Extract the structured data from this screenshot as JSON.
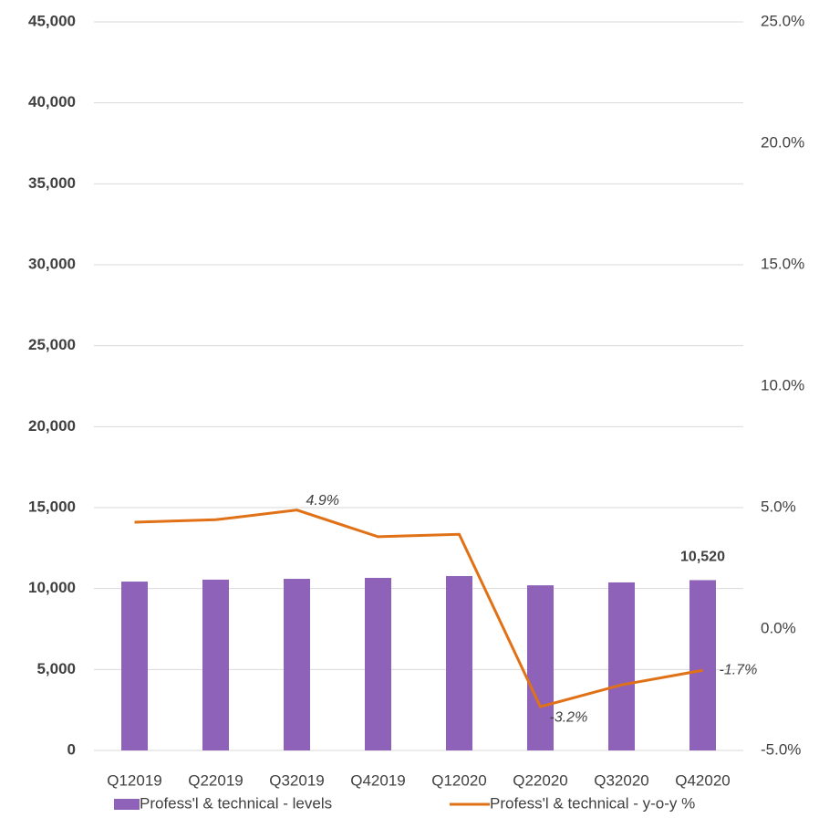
{
  "chart_data": {
    "type": "bar_line",
    "categories": [
      "Q12019",
      "Q22019",
      "Q32019",
      "Q42019",
      "Q12020",
      "Q22020",
      "Q32020",
      "Q42020"
    ],
    "series": [
      {
        "name": "Profess'l & technical - levels",
        "type": "bar",
        "color": "#8e62b8",
        "values": [
          10430,
          10550,
          10600,
          10660,
          10770,
          10200,
          10380,
          10520
        ],
        "value_labels": [
          null,
          null,
          null,
          null,
          null,
          null,
          null,
          "10,520"
        ]
      },
      {
        "name": "Profess'l & technical - y-o-y %",
        "type": "line",
        "axis": "y2",
        "color": "#e07117",
        "values": [
          4.4,
          4.5,
          4.9,
          3.8,
          3.9,
          -3.2,
          -2.3,
          -1.7
        ],
        "value_labels": [
          null,
          null,
          "4.9%",
          null,
          null,
          "-3.2%",
          null,
          "-1.7%"
        ]
      }
    ],
    "ylim": [
      0,
      45000
    ],
    "yticks": [
      0,
      {
        "value": 5000,
        "label": "5,000"
      },
      {
        "value": 10000,
        "label": "10,000"
      },
      {
        "value": 15000,
        "label": "15,000"
      },
      {
        "value": 20000,
        "label": "20,000"
      },
      {
        "value": 25000,
        "label": "25,000"
      },
      {
        "value": 30000,
        "label": "30,000"
      },
      {
        "value": 35000,
        "label": "35,000"
      },
      {
        "value": 40000,
        "label": "40,000"
      },
      {
        "value": 45000,
        "label": "45,000"
      }
    ],
    "y2lim": [
      -5,
      25
    ],
    "y2ticks": [
      {
        "value": -5,
        "label": "-5.0%"
      },
      {
        "value": 0,
        "label": "0.0%"
      },
      {
        "value": 5,
        "label": "5.0%"
      },
      {
        "value": 10,
        "label": "10.0%"
      },
      {
        "value": 15,
        "label": "15.0%"
      },
      {
        "value": 20,
        "label": "20.0%"
      },
      {
        "value": 25,
        "label": "25.0%"
      }
    ],
    "grid": true,
    "legend": "bottom"
  }
}
